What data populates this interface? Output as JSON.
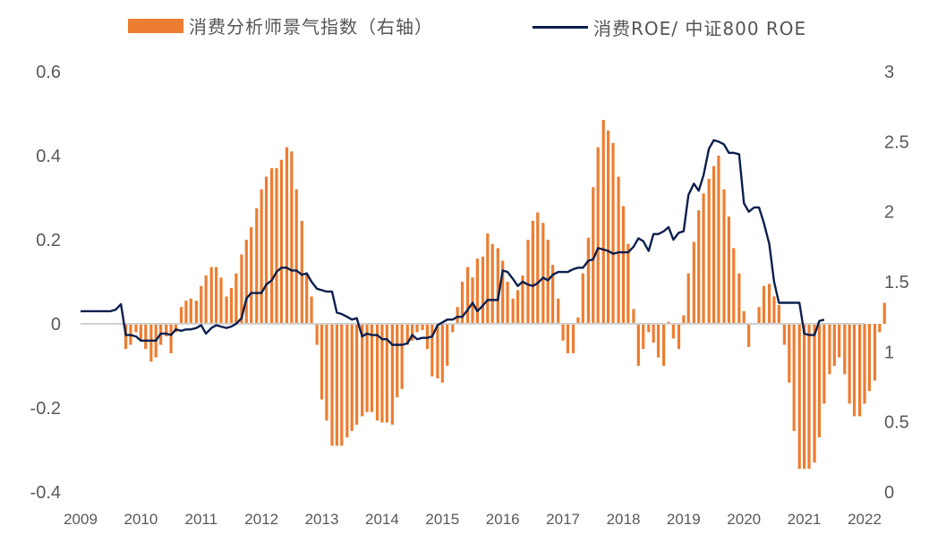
{
  "legend": {
    "bar_label": "消费分析师景气指数（右轴）",
    "line_label": "消费ROE/ 中证800 ROE"
  },
  "colors": {
    "bar": "#ED7D31",
    "line": "#0B1F4E",
    "axis": "#D0D0D0"
  },
  "chart_data": {
    "type": "bar+line",
    "title": "",
    "x_tick_labels": [
      "2009",
      "2010",
      "2011",
      "2012",
      "2013",
      "2014",
      "2015",
      "2016",
      "2017",
      "2018",
      "2019",
      "2020",
      "2021",
      "2022"
    ],
    "y_left": {
      "ylim": [
        -0.4,
        0.6
      ],
      "ticks": [
        "-0.4",
        "-0.2",
        "0",
        "0.2",
        "0.4",
        "0.6"
      ]
    },
    "y_right": {
      "ylim": [
        0,
        3
      ],
      "ticks": [
        "0",
        "0.5",
        "1",
        "1.5",
        "2",
        "2.5",
        "3"
      ]
    },
    "series": [
      {
        "name": "消费分析师景气指数（右轴）",
        "type": "bar",
        "axis": "left",
        "points": [
          [
            2009.75,
            -0.06
          ],
          [
            2009.83,
            -0.05
          ],
          [
            2009.92,
            -0.02
          ],
          [
            2010.0,
            -0.04
          ],
          [
            2010.08,
            -0.06
          ],
          [
            2010.17,
            -0.09
          ],
          [
            2010.25,
            -0.08
          ],
          [
            2010.33,
            -0.05
          ],
          [
            2010.42,
            -0.03
          ],
          [
            2010.5,
            -0.07
          ],
          [
            2010.58,
            -0.02
          ],
          [
            2010.67,
            0.04
          ],
          [
            2010.75,
            0.055
          ],
          [
            2010.83,
            0.06
          ],
          [
            2010.92,
            0.055
          ],
          [
            2011.0,
            0.09
          ],
          [
            2011.08,
            0.115
          ],
          [
            2011.17,
            0.135
          ],
          [
            2011.25,
            0.135
          ],
          [
            2011.33,
            0.11
          ],
          [
            2011.42,
            0.065
          ],
          [
            2011.5,
            0.085
          ],
          [
            2011.58,
            0.12
          ],
          [
            2011.67,
            0.165
          ],
          [
            2011.75,
            0.2
          ],
          [
            2011.83,
            0.23
          ],
          [
            2011.92,
            0.275
          ],
          [
            2012.0,
            0.32
          ],
          [
            2012.08,
            0.35
          ],
          [
            2012.17,
            0.37
          ],
          [
            2012.25,
            0.37
          ],
          [
            2012.33,
            0.39
          ],
          [
            2012.42,
            0.42
          ],
          [
            2012.5,
            0.41
          ],
          [
            2012.58,
            0.32
          ],
          [
            2012.67,
            0.245
          ],
          [
            2012.75,
            0.12
          ],
          [
            2012.83,
            0.065
          ],
          [
            2012.92,
            -0.05
          ],
          [
            2013.0,
            -0.18
          ],
          [
            2013.08,
            -0.23
          ],
          [
            2013.17,
            -0.29
          ],
          [
            2013.25,
            -0.29
          ],
          [
            2013.33,
            -0.29
          ],
          [
            2013.42,
            -0.27
          ],
          [
            2013.5,
            -0.255
          ],
          [
            2013.58,
            -0.24
          ],
          [
            2013.67,
            -0.22
          ],
          [
            2013.75,
            -0.21
          ],
          [
            2013.83,
            -0.21
          ],
          [
            2013.92,
            -0.23
          ],
          [
            2014.0,
            -0.235
          ],
          [
            2014.08,
            -0.235
          ],
          [
            2014.17,
            -0.24
          ],
          [
            2014.25,
            -0.175
          ],
          [
            2014.33,
            -0.155
          ],
          [
            2014.42,
            -0.05
          ],
          [
            2014.5,
            -0.04
          ],
          [
            2014.58,
            -0.02
          ],
          [
            2014.67,
            -0.015
          ],
          [
            2014.75,
            -0.06
          ],
          [
            2014.83,
            -0.125
          ],
          [
            2014.92,
            -0.13
          ],
          [
            2015.0,
            -0.14
          ],
          [
            2015.08,
            -0.1
          ],
          [
            2015.17,
            -0.02
          ],
          [
            2015.25,
            0.04
          ],
          [
            2015.33,
            0.1
          ],
          [
            2015.42,
            0.135
          ],
          [
            2015.5,
            0.11
          ],
          [
            2015.58,
            0.155
          ],
          [
            2015.67,
            0.16
          ],
          [
            2015.75,
            0.215
          ],
          [
            2015.83,
            0.19
          ],
          [
            2015.92,
            0.18
          ],
          [
            2016.0,
            0.15
          ],
          [
            2016.08,
            0.1
          ],
          [
            2016.17,
            0.06
          ],
          [
            2016.25,
            0.08
          ],
          [
            2016.33,
            0.115
          ],
          [
            2016.42,
            0.2
          ],
          [
            2016.5,
            0.245
          ],
          [
            2016.58,
            0.265
          ],
          [
            2016.67,
            0.24
          ],
          [
            2016.75,
            0.2
          ],
          [
            2016.83,
            0.14
          ],
          [
            2016.92,
            0.06
          ],
          [
            2017.0,
            -0.04
          ],
          [
            2017.08,
            -0.07
          ],
          [
            2017.17,
            -0.07
          ],
          [
            2017.25,
            0.015
          ],
          [
            2017.33,
            0.12
          ],
          [
            2017.42,
            0.205
          ],
          [
            2017.5,
            0.325
          ],
          [
            2017.58,
            0.42
          ],
          [
            2017.67,
            0.485
          ],
          [
            2017.75,
            0.46
          ],
          [
            2017.83,
            0.43
          ],
          [
            2017.92,
            0.35
          ],
          [
            2018.0,
            0.28
          ],
          [
            2018.08,
            0.19
          ],
          [
            2018.17,
            0.035
          ],
          [
            2018.25,
            -0.1
          ],
          [
            2018.33,
            -0.06
          ],
          [
            2018.42,
            -0.02
          ],
          [
            2018.5,
            -0.045
          ],
          [
            2018.58,
            -0.08
          ],
          [
            2018.67,
            -0.1
          ],
          [
            2018.75,
            0.005
          ],
          [
            2018.83,
            -0.035
          ],
          [
            2018.92,
            -0.06
          ],
          [
            2019.0,
            0.02
          ],
          [
            2019.08,
            0.12
          ],
          [
            2019.17,
            0.195
          ],
          [
            2019.25,
            0.27
          ],
          [
            2019.33,
            0.31
          ],
          [
            2019.42,
            0.345
          ],
          [
            2019.5,
            0.375
          ],
          [
            2019.58,
            0.4
          ],
          [
            2019.67,
            0.32
          ],
          [
            2019.75,
            0.255
          ],
          [
            2019.83,
            0.18
          ],
          [
            2019.92,
            0.12
          ],
          [
            2020.0,
            0.03
          ],
          [
            2020.08,
            -0.055
          ],
          [
            2020.17,
            0.0
          ],
          [
            2020.25,
            0.04
          ],
          [
            2020.33,
            0.09
          ],
          [
            2020.42,
            0.095
          ],
          [
            2020.5,
            0.065
          ],
          [
            2020.58,
            0.045
          ],
          [
            2020.67,
            -0.05
          ],
          [
            2020.75,
            -0.14
          ],
          [
            2020.83,
            -0.255
          ],
          [
            2020.92,
            -0.345
          ],
          [
            2021.0,
            -0.345
          ],
          [
            2021.08,
            -0.345
          ],
          [
            2021.17,
            -0.33
          ],
          [
            2021.25,
            -0.27
          ],
          [
            2021.33,
            -0.19
          ],
          [
            2021.42,
            -0.12
          ],
          [
            2021.5,
            -0.1
          ],
          [
            2021.58,
            -0.08
          ],
          [
            2021.67,
            -0.12
          ],
          [
            2021.75,
            -0.19
          ],
          [
            2021.83,
            -0.22
          ],
          [
            2021.92,
            -0.22
          ],
          [
            2022.0,
            -0.19
          ],
          [
            2022.08,
            -0.16
          ],
          [
            2022.17,
            -0.135
          ],
          [
            2022.25,
            -0.02
          ],
          [
            2022.33,
            0.05
          ]
        ]
      },
      {
        "name": "消费ROE/ 中证800 ROE",
        "type": "line",
        "axis": "right",
        "points": [
          [
            2009.0,
            1.29
          ],
          [
            2009.5,
            1.29
          ],
          [
            2009.58,
            1.3
          ],
          [
            2009.67,
            1.34
          ],
          [
            2009.75,
            1.12
          ],
          [
            2009.83,
            1.12
          ],
          [
            2009.92,
            1.11
          ],
          [
            2010.0,
            1.08
          ],
          [
            2010.08,
            1.08
          ],
          [
            2010.17,
            1.08
          ],
          [
            2010.25,
            1.08
          ],
          [
            2010.33,
            1.13
          ],
          [
            2010.42,
            1.13
          ],
          [
            2010.5,
            1.12
          ],
          [
            2010.58,
            1.16
          ],
          [
            2010.67,
            1.15
          ],
          [
            2010.75,
            1.16
          ],
          [
            2010.83,
            1.16
          ],
          [
            2010.92,
            1.17
          ],
          [
            2011.0,
            1.19
          ],
          [
            2011.08,
            1.13
          ],
          [
            2011.17,
            1.17
          ],
          [
            2011.25,
            1.19
          ],
          [
            2011.33,
            1.18
          ],
          [
            2011.42,
            1.17
          ],
          [
            2011.5,
            1.18
          ],
          [
            2011.58,
            1.2
          ],
          [
            2011.67,
            1.24
          ],
          [
            2011.75,
            1.38
          ],
          [
            2011.83,
            1.42
          ],
          [
            2011.92,
            1.42
          ],
          [
            2012.0,
            1.42
          ],
          [
            2012.08,
            1.48
          ],
          [
            2012.17,
            1.51
          ],
          [
            2012.25,
            1.57
          ],
          [
            2012.33,
            1.6
          ],
          [
            2012.42,
            1.6
          ],
          [
            2012.5,
            1.58
          ],
          [
            2012.58,
            1.58
          ],
          [
            2012.67,
            1.55
          ],
          [
            2012.75,
            1.56
          ],
          [
            2012.83,
            1.5
          ],
          [
            2012.92,
            1.45
          ],
          [
            2013.0,
            1.44
          ],
          [
            2013.08,
            1.43
          ],
          [
            2013.17,
            1.43
          ],
          [
            2013.25,
            1.28
          ],
          [
            2013.33,
            1.27
          ],
          [
            2013.42,
            1.25
          ],
          [
            2013.5,
            1.23
          ],
          [
            2013.58,
            1.24
          ],
          [
            2013.67,
            1.11
          ],
          [
            2013.75,
            1.13
          ],
          [
            2013.83,
            1.12
          ],
          [
            2013.92,
            1.12
          ],
          [
            2014.0,
            1.09
          ],
          [
            2014.08,
            1.09
          ],
          [
            2014.17,
            1.05
          ],
          [
            2014.25,
            1.05
          ],
          [
            2014.33,
            1.05
          ],
          [
            2014.42,
            1.06
          ],
          [
            2014.5,
            1.12
          ],
          [
            2014.58,
            1.09
          ],
          [
            2014.67,
            1.1
          ],
          [
            2014.75,
            1.1
          ],
          [
            2014.83,
            1.11
          ],
          [
            2014.92,
            1.19
          ],
          [
            2015.0,
            1.21
          ],
          [
            2015.08,
            1.23
          ],
          [
            2015.17,
            1.23
          ],
          [
            2015.25,
            1.25
          ],
          [
            2015.33,
            1.25
          ],
          [
            2015.42,
            1.3
          ],
          [
            2015.5,
            1.35
          ],
          [
            2015.58,
            1.29
          ],
          [
            2015.67,
            1.33
          ],
          [
            2015.75,
            1.37
          ],
          [
            2015.83,
            1.37
          ],
          [
            2015.92,
            1.37
          ],
          [
            2016.0,
            1.58
          ],
          [
            2016.08,
            1.57
          ],
          [
            2016.17,
            1.52
          ],
          [
            2016.25,
            1.47
          ],
          [
            2016.33,
            1.5
          ],
          [
            2016.42,
            1.48
          ],
          [
            2016.5,
            1.47
          ],
          [
            2016.58,
            1.49
          ],
          [
            2016.67,
            1.53
          ],
          [
            2016.75,
            1.51
          ],
          [
            2016.83,
            1.55
          ],
          [
            2016.92,
            1.57
          ],
          [
            2017.0,
            1.57
          ],
          [
            2017.08,
            1.57
          ],
          [
            2017.17,
            1.59
          ],
          [
            2017.25,
            1.6
          ],
          [
            2017.33,
            1.6
          ],
          [
            2017.42,
            1.65
          ],
          [
            2017.5,
            1.66
          ],
          [
            2017.58,
            1.74
          ],
          [
            2017.67,
            1.73
          ],
          [
            2017.75,
            1.72
          ],
          [
            2017.83,
            1.7
          ],
          [
            2017.92,
            1.71
          ],
          [
            2018.0,
            1.71
          ],
          [
            2018.08,
            1.71
          ],
          [
            2018.17,
            1.75
          ],
          [
            2018.25,
            1.81
          ],
          [
            2018.33,
            1.79
          ],
          [
            2018.42,
            1.72
          ],
          [
            2018.5,
            1.84
          ],
          [
            2018.58,
            1.84
          ],
          [
            2018.67,
            1.86
          ],
          [
            2018.75,
            1.89
          ],
          [
            2018.83,
            1.8
          ],
          [
            2018.92,
            1.85
          ],
          [
            2019.0,
            1.86
          ],
          [
            2019.08,
            2.12
          ],
          [
            2019.17,
            2.2
          ],
          [
            2019.25,
            2.15
          ],
          [
            2019.33,
            2.26
          ],
          [
            2019.42,
            2.45
          ],
          [
            2019.5,
            2.51
          ],
          [
            2019.58,
            2.5
          ],
          [
            2019.67,
            2.48
          ],
          [
            2019.75,
            2.42
          ],
          [
            2019.83,
            2.42
          ],
          [
            2019.92,
            2.41
          ],
          [
            2020.0,
            2.06
          ],
          [
            2020.08,
            2.0
          ],
          [
            2020.17,
            2.03
          ],
          [
            2020.25,
            2.03
          ],
          [
            2020.33,
            1.92
          ],
          [
            2020.42,
            1.77
          ],
          [
            2020.5,
            1.5
          ],
          [
            2020.58,
            1.35
          ],
          [
            2020.67,
            1.35
          ],
          [
            2020.75,
            1.35
          ],
          [
            2020.83,
            1.35
          ],
          [
            2020.92,
            1.35
          ],
          [
            2021.0,
            1.13
          ],
          [
            2021.08,
            1.12
          ],
          [
            2021.17,
            1.12
          ],
          [
            2021.25,
            1.22
          ],
          [
            2021.33,
            1.23
          ]
        ]
      }
    ]
  }
}
